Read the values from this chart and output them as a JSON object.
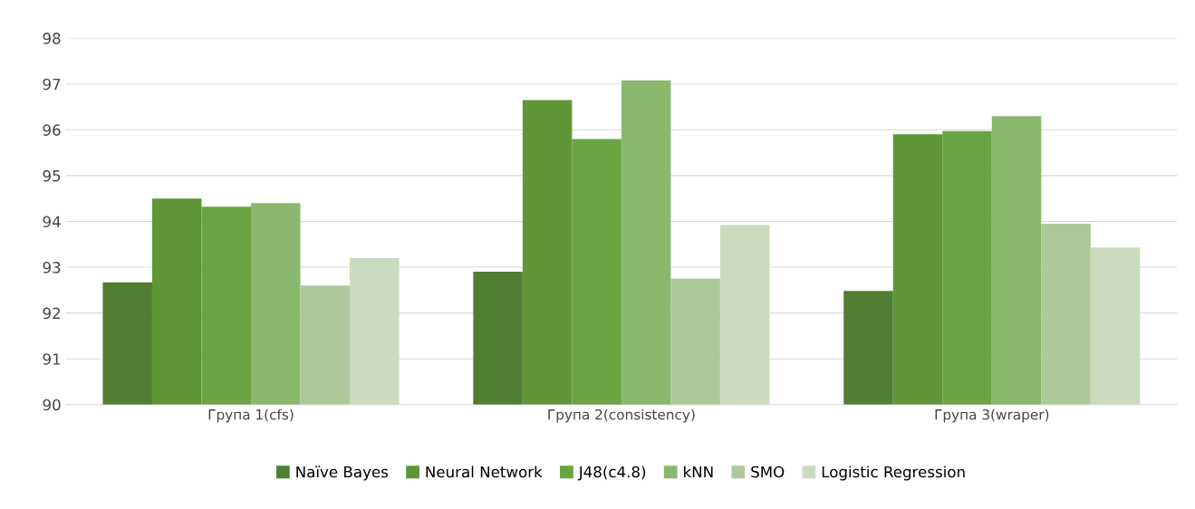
{
  "chart_data": {
    "type": "bar",
    "categories": [
      "Група 1(cfs)",
      "Група 2(consistency)",
      "Група 3(wraper)"
    ],
    "series": [
      {
        "name": "Naïve Bayes",
        "color": "#507e32",
        "values": [
          92.67,
          92.9,
          92.48
        ]
      },
      {
        "name": "Neural Network",
        "color": "#5e9638",
        "values": [
          94.5,
          96.65,
          95.9
        ]
      },
      {
        "name": "J48(c4.8)",
        "color": "#6aa443",
        "values": [
          94.32,
          95.8,
          95.97
        ]
      },
      {
        "name": "kNN",
        "color": "#8ab86d",
        "values": [
          94.4,
          97.08,
          96.3
        ]
      },
      {
        "name": "SMO",
        "color": "#adc99a",
        "values": [
          92.6,
          92.75,
          93.95
        ]
      },
      {
        "name": "Logistic Regression",
        "color": "#cadcc0",
        "values": [
          93.2,
          93.92,
          93.43
        ]
      }
    ],
    "ylim": [
      90,
      98
    ],
    "yticks": [
      90,
      91,
      92,
      93,
      94,
      95,
      96,
      97,
      98
    ],
    "grid": "y",
    "legend": "bottom"
  }
}
